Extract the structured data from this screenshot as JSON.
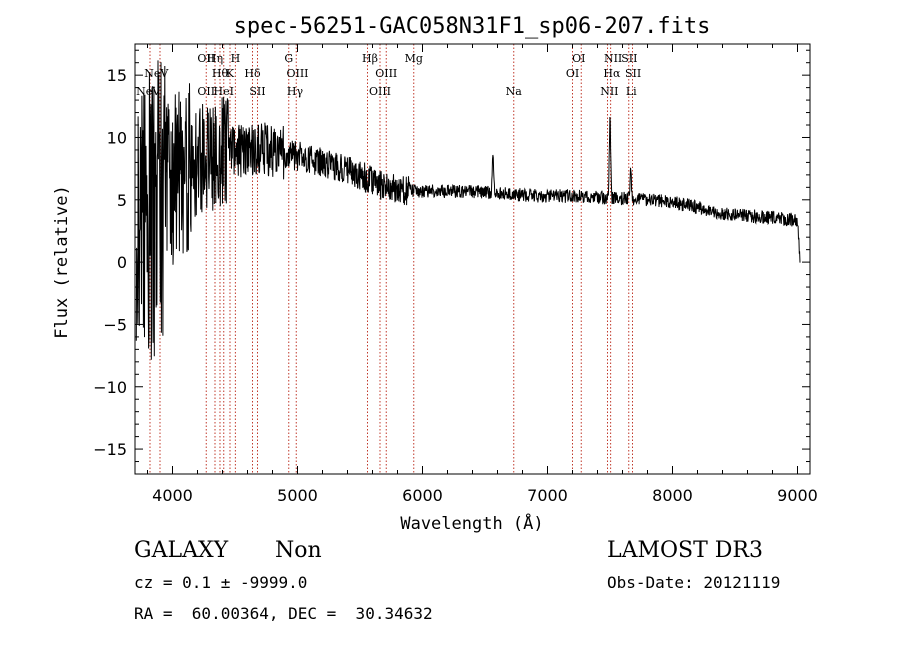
{
  "chart_data": {
    "type": "line",
    "title": "spec-56251-GAC058N31F1_sp06-207.fits",
    "xlabel": "Wavelength (Å)",
    "ylabel": "Flux (relative)",
    "xlim": [
      3700,
      9100
    ],
    "ylim": [
      -17,
      17.5
    ],
    "xticks": [
      4000,
      5000,
      6000,
      7000,
      8000,
      9000
    ],
    "yticks": [
      -15,
      -10,
      -5,
      0,
      5,
      10,
      15
    ],
    "continuum": [
      [
        3700,
        0
      ],
      [
        3800,
        3
      ],
      [
        3900,
        5
      ],
      [
        4000,
        6.5
      ],
      [
        4100,
        7.5
      ],
      [
        4200,
        8
      ],
      [
        4300,
        8.5
      ],
      [
        4400,
        8.8
      ],
      [
        4500,
        9
      ],
      [
        4600,
        9
      ],
      [
        4800,
        9
      ],
      [
        5000,
        8.5
      ],
      [
        5200,
        8
      ],
      [
        5400,
        7.5
      ],
      [
        5500,
        7
      ],
      [
        5600,
        6.5
      ],
      [
        5700,
        6
      ],
      [
        5800,
        5.8
      ],
      [
        6000,
        5.7
      ],
      [
        6200,
        5.7
      ],
      [
        6500,
        5.6
      ],
      [
        6800,
        5.4
      ],
      [
        7000,
        5.3
      ],
      [
        7200,
        5.3
      ],
      [
        7400,
        5.2
      ],
      [
        7600,
        5.1
      ],
      [
        7800,
        5
      ],
      [
        8000,
        4.8
      ],
      [
        8200,
        4.4
      ],
      [
        8400,
        3.9
      ],
      [
        8600,
        3.7
      ],
      [
        8800,
        3.6
      ],
      [
        9000,
        3.3
      ],
      [
        9020,
        0
      ]
    ],
    "emission_features": [
      {
        "x": 6563,
        "y": 8.5
      },
      {
        "x": 7500,
        "y": 11.2
      },
      {
        "x": 7665,
        "y": 7.4
      }
    ],
    "spectral_lines": [
      {
        "label": "NeV",
        "x": 3346,
        "row": 2
      },
      {
        "label": "NeV",
        "x": 3426,
        "row": 1
      },
      {
        "label": "OII",
        "x": 4270,
        "row": 0
      },
      {
        "label": "Hη",
        "x": 4340,
        "row": 0
      },
      {
        "label": "H",
        "x": 4503,
        "row": 0
      },
      {
        "label": "Hθ",
        "x": 4380,
        "row": 1
      },
      {
        "label": "K",
        "x": 4460,
        "row": 1
      },
      {
        "label": "Hδ",
        "x": 4640,
        "row": 1
      },
      {
        "label": "OII",
        "x": 4270,
        "row": 2
      },
      {
        "label": "HeI",
        "x": 4410,
        "row": 2
      },
      {
        "label": "SII",
        "x": 4680,
        "row": 2
      },
      {
        "label": "G",
        "x": 4930,
        "row": 0
      },
      {
        "label": "OIII",
        "x": 5000,
        "row": 1
      },
      {
        "label": "Hγ",
        "x": 4980,
        "row": 2
      },
      {
        "label": "Hβ",
        "x": 5580,
        "row": 0
      },
      {
        "label": "OIII",
        "x": 5710,
        "row": 1
      },
      {
        "label": "OIII",
        "x": 5660,
        "row": 2
      },
      {
        "label": "Mg",
        "x": 5930,
        "row": 0
      },
      {
        "label": "Na",
        "x": 6730,
        "row": 2
      },
      {
        "label": "OI",
        "x": 7250,
        "row": 0
      },
      {
        "label": "OI",
        "x": 7200,
        "row": 1
      },
      {
        "label": "NII",
        "x": 7525,
        "row": 0
      },
      {
        "label": "SII",
        "x": 7655,
        "row": 0
      },
      {
        "label": "Hα",
        "x": 7515,
        "row": 1
      },
      {
        "label": "SII",
        "x": 7685,
        "row": 1
      },
      {
        "label": "NII",
        "x": 7495,
        "row": 2
      },
      {
        "label": "Li",
        "x": 7670,
        "row": 2
      }
    ],
    "line_markers_x": [
      3820,
      3900,
      4270,
      4340,
      4380,
      4410,
      4460,
      4503,
      4640,
      4680,
      4930,
      4990,
      5560,
      5660,
      5710,
      5930,
      6730,
      7200,
      7270,
      7480,
      7505,
      7650,
      7680
    ],
    "colors": {
      "spectrum": "#000000",
      "line_marker": "#c0392b",
      "axis": "#000000"
    }
  },
  "info": {
    "class": "GALAXY",
    "subclass": "Non",
    "survey": "LAMOST DR3",
    "cz": "cz = 0.1 ± -9999.0",
    "obs_date": "Obs-Date: 20121119",
    "radec": "RA =  60.00364, DEC =  30.34632"
  }
}
